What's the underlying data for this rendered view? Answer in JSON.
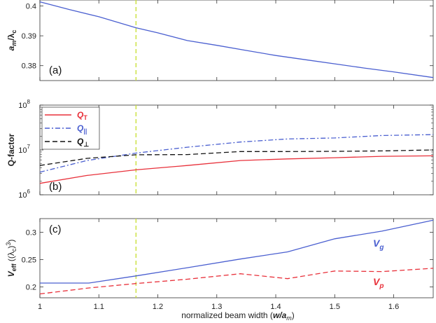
{
  "xaxis": {
    "label_parts": [
      "normalized beam width (",
      "w/a",
      "m",
      ")"
    ],
    "ticks": [
      1,
      1.1,
      1.2,
      1.3,
      1.4,
      1.5,
      1.6
    ],
    "tick_labels": [
      "1",
      "1.1",
      "1.2",
      "1.3",
      "1.4",
      "1.5",
      "1.6"
    ]
  },
  "chart_data": [
    {
      "type": "line",
      "panel_label": "(a)",
      "ylabel_parts": [
        "a",
        "m",
        "/λ",
        "c"
      ],
      "xlim": [
        1,
        1.667
      ],
      "ylim": [
        0.375,
        0.402
      ],
      "ytick_labels": [
        "0.38",
        "0.39",
        "0.4"
      ],
      "yticks": [
        0.38,
        0.39,
        0.4
      ],
      "vline_x": 1.163,
      "series": [
        {
          "color": "#4a5fd0",
          "dash": "solid",
          "x": [
            1,
            1.05,
            1.1,
            1.163,
            1.2,
            1.25,
            1.3,
            1.35,
            1.4,
            1.45,
            1.5,
            1.55,
            1.6,
            1.667
          ],
          "y": [
            0.4014,
            0.3988,
            0.3964,
            0.3927,
            0.391,
            0.3884,
            0.3868,
            0.3851,
            0.3834,
            0.382,
            0.3806,
            0.3792,
            0.3779,
            0.376
          ]
        }
      ]
    },
    {
      "type": "line",
      "panel_label": "(b)",
      "ylabel": "Q-factor",
      "yscale": "log",
      "xlim": [
        1,
        1.667
      ],
      "ylim": [
        1000000,
        100000000
      ],
      "yticks": [
        1000000,
        10000000,
        100000000
      ],
      "ytick_labels": [
        "10",
        "10",
        "10"
      ],
      "ytick_exponents": [
        "6",
        "7",
        "8"
      ],
      "vline_x": 1.163,
      "legend_position": "top-left",
      "series": [
        {
          "name_parts": [
            "Q",
            "T"
          ],
          "color": "#e8303a",
          "dash": "solid",
          "x": [
            1,
            1.08,
            1.163,
            1.25,
            1.34,
            1.42,
            1.5,
            1.58,
            1.667
          ],
          "y": [
            1800000,
            2700000,
            3600000,
            4500000,
            5800000,
            6300000,
            6700000,
            7200000,
            7400000
          ]
        },
        {
          "name_parts": [
            "Q",
            "||"
          ],
          "color": "#4a5fd0",
          "dash": "dashdot",
          "x": [
            1,
            1.08,
            1.163,
            1.25,
            1.34,
            1.42,
            1.5,
            1.58,
            1.667
          ],
          "y": [
            3200000,
            5800000,
            8500000,
            11500000,
            15000000,
            17600000,
            18500000,
            21000000,
            22000000
          ]
        },
        {
          "name_parts": [
            "Q",
            "⊥"
          ],
          "color": "#111111",
          "dash": "dashed",
          "x": [
            1,
            1.08,
            1.163,
            1.25,
            1.34,
            1.42,
            1.5,
            1.58,
            1.667
          ],
          "y": [
            4500000,
            6500000,
            7800000,
            7900000,
            9200000,
            9200000,
            9300000,
            9500000,
            10000000
          ]
        }
      ]
    },
    {
      "type": "line",
      "panel_label": "(c)",
      "ylabel_parts": [
        "V",
        "eff",
        " ((λ",
        "c",
        ")",
        "3",
        ")"
      ],
      "xlim": [
        1,
        1.667
      ],
      "ylim": [
        0.18,
        0.325
      ],
      "yticks": [
        0.2,
        0.25,
        0.3
      ],
      "ytick_labels": [
        "0.2",
        "0.25",
        "0.3"
      ],
      "vline_x": 1.163,
      "series": [
        {
          "label_parts": [
            "V",
            "g"
          ],
          "color": "#4a5fd0",
          "dash": "solid",
          "x": [
            1,
            1.083,
            1.163,
            1.25,
            1.34,
            1.42,
            1.5,
            1.58,
            1.667
          ],
          "y": [
            0.207,
            0.207,
            0.22,
            0.235,
            0.251,
            0.264,
            0.288,
            0.302,
            0.322
          ]
        },
        {
          "label_parts": [
            "V",
            "p"
          ],
          "color": "#e8303a",
          "dash": "dashed",
          "x": [
            1,
            1.083,
            1.163,
            1.25,
            1.34,
            1.42,
            1.5,
            1.58,
            1.667
          ],
          "y": [
            0.187,
            0.198,
            0.206,
            0.214,
            0.224,
            0.215,
            0.229,
            0.228,
            0.234
          ]
        }
      ]
    }
  ]
}
